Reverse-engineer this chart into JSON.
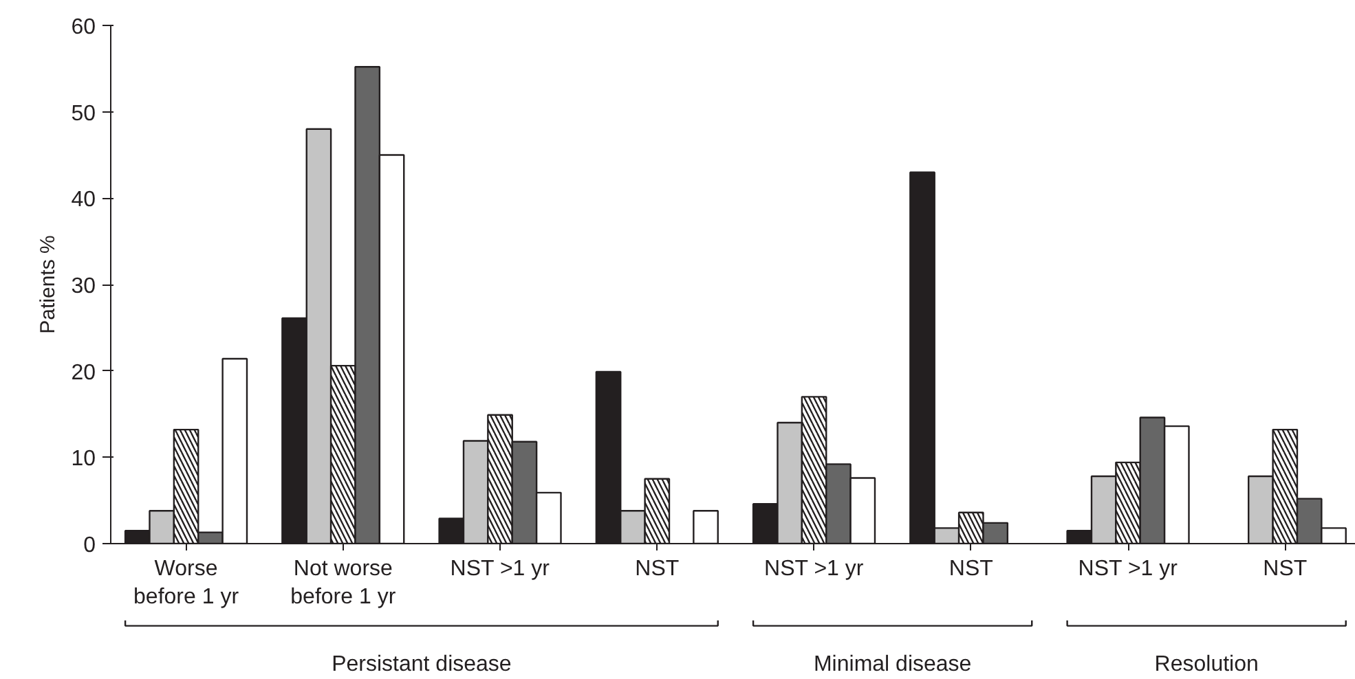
{
  "chart_data": {
    "type": "bar",
    "ylabel": "Patients %",
    "categories": [
      "Worse\nbefore 1 yr",
      "Not worse\nbefore 1 yr",
      "NST >1 yr",
      "NST",
      "NST >1 yr",
      "NST",
      "NST >1 yr",
      "NST"
    ],
    "series": [
      {
        "color": "#231f20",
        "values": [
          1.5,
          26.1,
          2.9,
          19.9,
          4.6,
          43.0,
          1.5,
          null
        ]
      },
      {
        "color": "#c4c4c4",
        "values": [
          3.8,
          48.0,
          11.9,
          3.8,
          14.0,
          1.8,
          7.8,
          7.8
        ]
      },
      {
        "color": "#ffffff",
        "values": [
          13.2,
          20.6,
          14.9,
          7.5,
          17.0,
          3.6,
          9.4,
          13.2
        ]
      },
      {
        "color": "#666666",
        "values": [
          1.3,
          55.2,
          11.8,
          null,
          9.2,
          2.4,
          14.6,
          5.2
        ]
      },
      {
        "color": "#ffffff",
        "values": [
          21.4,
          45.0,
          5.9,
          3.8,
          7.6,
          null,
          13.6,
          1.8
        ]
      }
    ],
    "ylim": [
      0,
      60
    ],
    "yticks": [
      0,
      10,
      20,
      30,
      40,
      50,
      60
    ],
    "grid": false,
    "annotations": [
      "Persistant disease",
      "Minimal disease",
      "Resolution"
    ]
  }
}
